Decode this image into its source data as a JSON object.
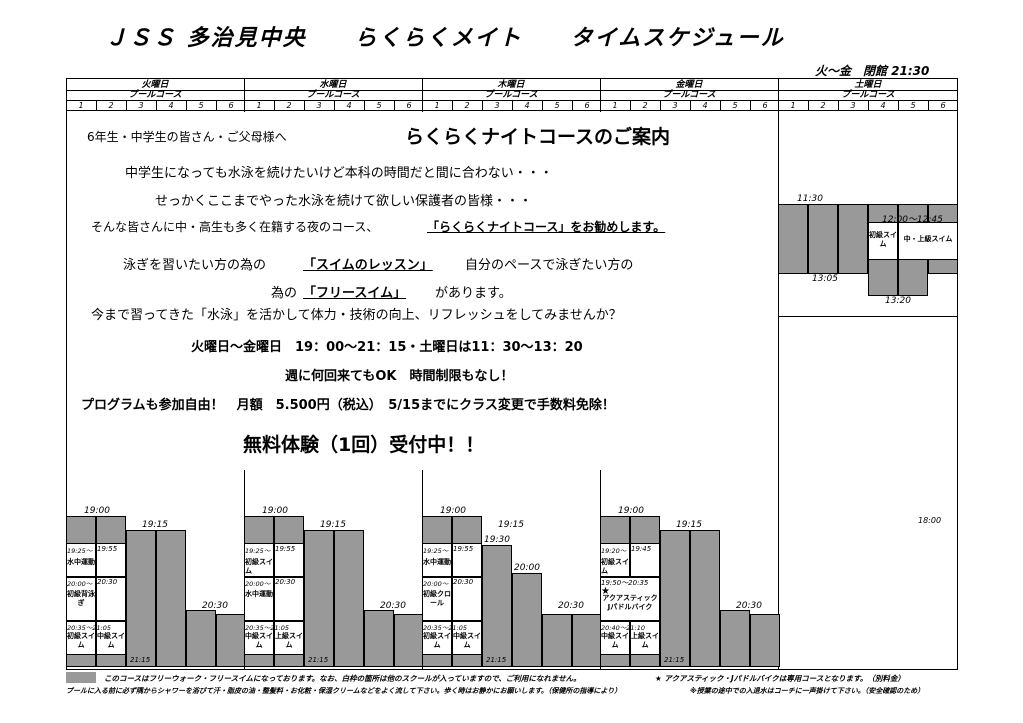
{
  "title": "ＪＳＳ 多治見中央　　らくらくメイト　　タイムスケジュール",
  "hours_note": "火～金　閉館 21:30",
  "days": [
    "火曜日",
    "水曜日",
    "木曜日",
    "金曜日",
    "土曜日"
  ],
  "pool_course": "プールコース",
  "lanes": [
    "1",
    "2",
    "3",
    "4",
    "5",
    "6"
  ],
  "notice": {
    "line1_prefix": "6年生・中学生の皆さん・ご父母様へ",
    "line1_heading": "らくらくナイトコースのご案内",
    "line2": "中学生になっても水泳を続けたいけど本科の時間だと間に合わない・・・",
    "line3": "せっかくここまでやった水泳を続けて欲しい保護者の皆様・・・",
    "line4_a": "そんな皆さんに中・高生も多く在籍する夜のコース、",
    "line4_b": "「らくらくナイトコース」をお勧めします。",
    "line5_a": "泳ぎを習いたい方の為の",
    "line5_b": "「スイムのレッスン」",
    "line5_c": "自分のペースで泳ぎたい方の",
    "line6_a": "為の",
    "line6_b": "「フリースイム」",
    "line6_c": "があります。",
    "line7": "今まで習ってきた「水泳」を活かして体力・技術の向上、リフレッシュをしてみませんか？",
    "line8": "火曜日～金曜日　19：00～21：15・土曜日は11：30～13：20",
    "line9": "週に何回来てもOK　時間制限もなし！",
    "line10": "プログラムも参加自由！　月額　5.500円（税込）　5/15までにクラス変更で手数料免除！",
    "line11": "無料体験（1回）受付中！！"
  },
  "schedule": {
    "t1900": "19:00",
    "t1915": "19:15",
    "t1930": "19:30",
    "t2000": "20:00",
    "t2030": "20:30",
    "t2115": "21:15",
    "tue": {
      "b1_time": "19:25～",
      "b1_time2": "19:55",
      "b1_label": "水中運動",
      "b2_time": "20:00～",
      "b2_time2": "20:30",
      "b2_label": "初級背泳ぎ",
      "b3_time": "20:35～21:05",
      "b3_label_a": "初級スイム",
      "b3_label_b": "中級スイム"
    },
    "wed": {
      "b1_time": "19:25～",
      "b1_time2": "19:55",
      "b1_label": "初級スイム",
      "b2_time": "20:00～",
      "b2_time2": "20:30",
      "b2_label": "水中運動",
      "b3_time": "20:35～21:05",
      "b3_label_a": "中級スイム",
      "b3_label_b": "上級スイム"
    },
    "thu": {
      "b1_time": "19:25～",
      "b1_time2": "19:55",
      "b1_label": "水中運動",
      "b2_time": "20:00～",
      "b2_time2": "20:30",
      "b2_label": "初級クロール",
      "b3_time": "20:35～21:05",
      "b3_label_a": "初級スイム",
      "b3_label_b": "中級スイム"
    },
    "fri": {
      "b1_time": "19:20～",
      "b1_time2": "19:45",
      "b1_label": "初級スイム",
      "b2_time": "19:50～20:35",
      "b2_label": "アクアスティック Jパドルバイク",
      "b3_time": "20:40～21:10",
      "b3_label_a": "中級スイム",
      "b3_label_b": "上級スイム",
      "star": "★"
    },
    "sat": {
      "t1130": "11:30",
      "t1200": "12:00～12:45",
      "label_a": "初級スイム",
      "label_b": "中・上級スイム",
      "t1305": "13:05",
      "t1320": "13:20",
      "t1800": "18:00"
    }
  },
  "footer": {
    "legend": "このコースはフリーウォーク・フリースイムになっております。なお、白枠の箇所は他のスクールが入っていますので、ご利用になれません。",
    "star_note": "★ アクアスティック・Jパドルバイクは専用コースとなります。（別料金）",
    "rules": "プールに入る前に必ず隅からシャワーを浴びて汗・脂皮の油・整髪料・お化粧・保湿クリームなどをよく流して下さい。歩く時はお静かにお願いします。（保健所の指導により）",
    "rules2": "※授業の途中での入退水はコーチに一声掛けて下さい。（安全確認のため）"
  }
}
